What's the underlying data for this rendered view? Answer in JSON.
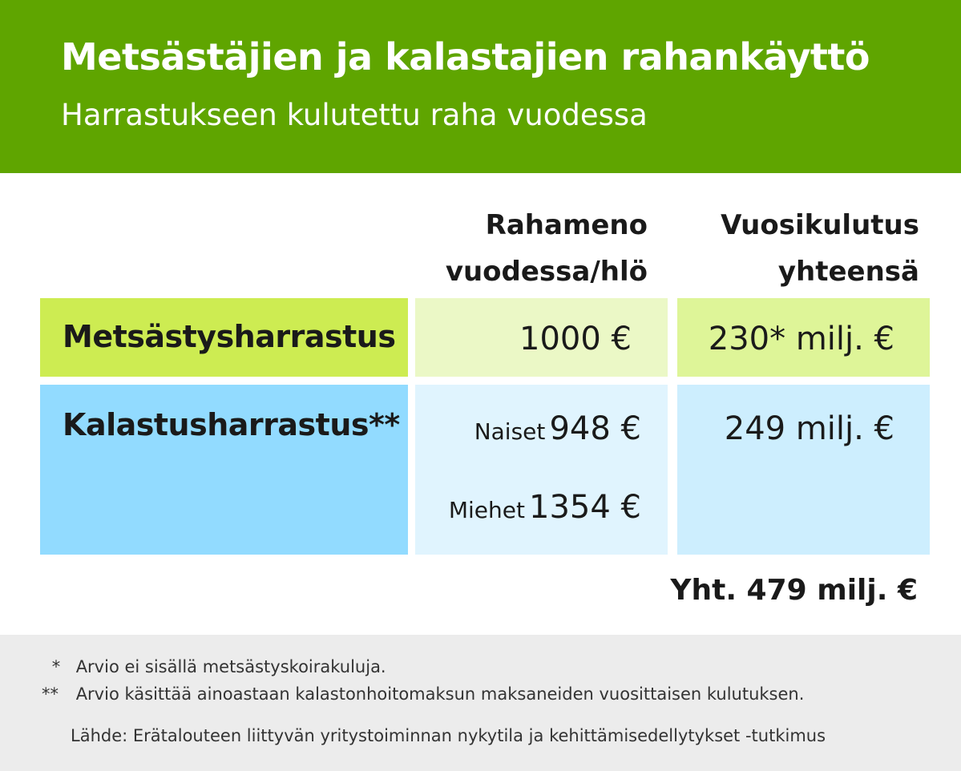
{
  "header": {
    "title": "Metsästäjien ja kalastajien rahankäyttö",
    "subtitle": "Harrastukseen kulutettu raha vuodessa"
  },
  "columns": {
    "per_person_line1": "Rahameno",
    "per_person_line2": "vuodessa/hlö",
    "annual_line1": "Vuosikulutus",
    "annual_line2": "yhteensä"
  },
  "rows": {
    "hunting": {
      "label": "Metsästysharrastus",
      "per_person": "1000 €",
      "annual": "230* milj. €"
    },
    "fishing": {
      "label": "Kalastusharrastus**",
      "women_label": "Naiset",
      "women_value": "948 €",
      "men_label": "Miehet",
      "men_value": "1354 €",
      "annual": "249 milj. €"
    }
  },
  "total": "Yht. 479 milj. €",
  "footnotes": {
    "note1_mark": "*",
    "note1_text": "Arvio ei sisällä metsästyskoirakuluja.",
    "note2_mark": "**",
    "note2_text": "Arvio käsittää ainoastaan kalastonhoitomaksun maksaneiden vuosittaisen kulutuksen.",
    "source": "Lähde: Erätalouteen liittyvän yritystoiminnan nykytila ja kehittämisedellytykset -tutkimus"
  },
  "colors": {
    "header_green": "#5fa500",
    "hunting_label_bg": "#cdec52",
    "hunting_cell_bg": "#ebf8c6",
    "hunting_total_bg": "#def598",
    "fishing_label_bg": "#92dbff",
    "fishing_cell_bg": "#e0f4fe",
    "fishing_total_bg": "#cdeefe",
    "footer_bg": "#ececec"
  },
  "chart_data": {
    "type": "table",
    "title": "Metsästäjien ja kalastajien rahankäyttö",
    "subtitle": "Harrastukseen kulutettu raha vuodessa",
    "columns": [
      "Rahameno vuodessa/hlö",
      "Vuosikulutus yhteensä"
    ],
    "rows": [
      {
        "name": "Metsästysharrastus",
        "per_person_eur": 1000,
        "annual_million_eur": 230
      },
      {
        "name": "Kalastusharrastus",
        "per_person_eur": {
          "Naiset": 948,
          "Miehet": 1354
        },
        "annual_million_eur": 249
      }
    ],
    "total_million_eur": 479
  }
}
